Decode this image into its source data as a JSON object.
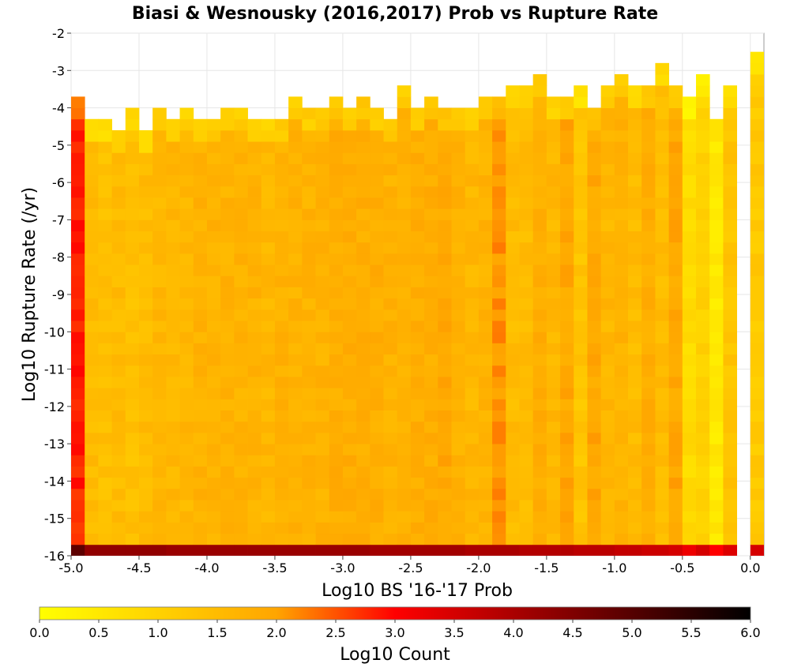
{
  "chart_data": {
    "type": "heatmap",
    "title": "Biasi & Wesnousky (2016,2017) Prob vs Rupture Rate",
    "xlabel": "Log10 BS '16-'17 Prob",
    "ylabel": "Log10 Rupture Rate (/yr)",
    "xlim": [
      -5.0,
      0.1
    ],
    "ylim": [
      -16,
      -2
    ],
    "x_ticks": [
      -5.0,
      -4.5,
      -4.0,
      -3.5,
      -3.0,
      -2.5,
      -2.0,
      -1.5,
      -1.0,
      -0.5,
      0.0
    ],
    "x_tick_labels": [
      "-5.0",
      "-4.5",
      "-4.0",
      "-3.5",
      "-3.0",
      "-2.5",
      "-2.0",
      "-1.5",
      "-1.0",
      "-0.5",
      "0.0"
    ],
    "y_ticks": [
      -2,
      -3,
      -4,
      -5,
      -6,
      -7,
      -8,
      -9,
      -10,
      -11,
      -12,
      -13,
      -14,
      -15,
      -16
    ],
    "y_tick_labels": [
      "-2",
      "-3",
      "-4",
      "-5",
      "-6",
      "-7",
      "-8",
      "-9",
      "-10",
      "-11",
      "-12",
      "-13",
      "-14",
      "-15",
      "-16"
    ],
    "grid": true,
    "x_bin_width": 0.1,
    "y_bin_width": 0.3,
    "x_bin_centers": [
      -4.95,
      -4.85,
      -4.75,
      -4.65,
      -4.55,
      -4.45,
      -4.35,
      -4.25,
      -4.15,
      -4.05,
      -3.95,
      -3.85,
      -3.75,
      -3.65,
      -3.55,
      -3.45,
      -3.35,
      -3.25,
      -3.15,
      -3.05,
      -2.95,
      -2.85,
      -2.75,
      -2.65,
      -2.55,
      -2.45,
      -2.35,
      -2.25,
      -2.15,
      -2.05,
      -1.95,
      -1.85,
      -1.75,
      -1.65,
      -1.55,
      -1.45,
      -1.35,
      -1.25,
      -1.15,
      -1.05,
      -0.95,
      -0.85,
      -0.75,
      -0.65,
      -0.55,
      -0.45,
      -0.35,
      -0.25,
      -0.15,
      -0.05,
      0.05
    ],
    "column_top_log10_rate": [
      -3.6,
      -4.2,
      -4.2,
      -4.5,
      -3.9,
      -4.5,
      -3.9,
      -4.2,
      -3.9,
      -4.2,
      -4.2,
      -3.9,
      -3.9,
      -4.2,
      -4.2,
      -4.2,
      -3.6,
      -3.9,
      -3.9,
      -3.6,
      -3.9,
      -3.6,
      -3.9,
      -4.2,
      -3.3,
      -3.9,
      -3.6,
      -3.9,
      -3.9,
      -3.9,
      -3.6,
      -3.6,
      -3.3,
      -3.3,
      -3.0,
      -3.6,
      -3.6,
      -3.3,
      -3.9,
      -3.3,
      -3.0,
      -3.3,
      -3.3,
      -2.7,
      -3.3,
      -3.6,
      -3.0,
      -3.6,
      -3.3,
      -99,
      -2.4
    ],
    "column_mean_log10_count": [
      2.8,
      1.5,
      1.4,
      1.5,
      1.4,
      1.5,
      1.6,
      1.6,
      1.6,
      1.7,
      1.7,
      1.7,
      1.7,
      1.7,
      1.6,
      1.7,
      1.7,
      1.7,
      1.7,
      1.8,
      1.8,
      1.8,
      1.8,
      1.7,
      1.7,
      1.8,
      1.8,
      1.9,
      1.7,
      1.6,
      1.7,
      2.1,
      1.5,
      1.5,
      1.8,
      1.6,
      1.9,
      1.3,
      1.9,
      1.6,
      1.7,
      1.5,
      1.8,
      1.5,
      1.9,
      0.8,
      1.0,
      0.5,
      1.3,
      0.0,
      1.2
    ],
    "bottom_row_log10_count": [
      4.9,
      4.3,
      4.3,
      4.3,
      4.3,
      4.3,
      4.3,
      4.2,
      4.2,
      4.2,
      4.2,
      4.2,
      4.2,
      4.2,
      4.2,
      4.2,
      4.2,
      4.2,
      4.2,
      4.2,
      4.2,
      4.2,
      4.1,
      4.1,
      4.1,
      4.1,
      4.1,
      4.1,
      4.1,
      4.0,
      4.0,
      4.0,
      4.0,
      3.9,
      3.9,
      3.9,
      3.9,
      3.8,
      3.8,
      3.8,
      3.7,
      3.7,
      3.6,
      3.6,
      3.5,
      3.2,
      3.5,
      3.0,
      3.4,
      0.0,
      3.5
    ],
    "colorbar": {
      "label": "Log10 Count",
      "range": [
        0.0,
        6.0
      ],
      "ticks": [
        0.0,
        0.5,
        1.0,
        1.5,
        2.0,
        2.5,
        3.0,
        3.5,
        4.0,
        4.5,
        5.0,
        5.5,
        6.0
      ],
      "tick_labels": [
        "0.0",
        "0.5",
        "1.0",
        "1.5",
        "2.0",
        "2.5",
        "3.0",
        "3.5",
        "4.0",
        "4.5",
        "5.0",
        "5.5",
        "6.0"
      ],
      "colors": [
        "#ffff00",
        "#ffa500",
        "#ff0000",
        "#000000"
      ],
      "color_stops": [
        0.0,
        2.0,
        3.0,
        6.0
      ]
    }
  }
}
